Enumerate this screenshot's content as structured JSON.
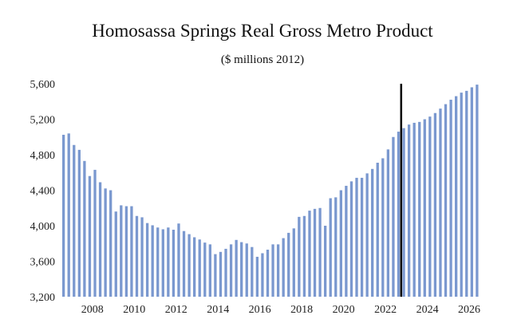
{
  "chart_data": {
    "type": "bar",
    "title": "Homosassa Springs Real Gross Metro Product",
    "subtitle": "($ millions 2012)",
    "xlabel": "",
    "ylabel": "",
    "ylim": [
      3200,
      5600
    ],
    "y_ticks": [
      3200,
      3600,
      4000,
      4400,
      4800,
      5200,
      5600
    ],
    "y_tick_labels": [
      "3,200",
      "3,600",
      "4,000",
      "4,400",
      "4,800",
      "5,200",
      "5,600"
    ],
    "x_tick_labels": [
      "2008",
      "2010",
      "2012",
      "2014",
      "2016",
      "2018",
      "2020",
      "2022",
      "2024",
      "2026"
    ],
    "x_start_year": 2007,
    "periods_per_year": 4,
    "forecast_line_after_index": 65,
    "bar_color": "#7a98cf",
    "values": [
      5025,
      5040,
      4910,
      4855,
      4730,
      4560,
      4630,
      4490,
      4420,
      4400,
      4160,
      4230,
      4220,
      4220,
      4110,
      4095,
      4030,
      4005,
      3980,
      3960,
      3980,
      3955,
      4025,
      3940,
      3905,
      3870,
      3845,
      3810,
      3790,
      3680,
      3705,
      3740,
      3790,
      3840,
      3815,
      3800,
      3760,
      3650,
      3690,
      3730,
      3790,
      3790,
      3860,
      3920,
      3970,
      4100,
      4110,
      4170,
      4190,
      4200,
      4000,
      4310,
      4320,
      4400,
      4450,
      4500,
      4540,
      4540,
      4590,
      4640,
      4710,
      4760,
      4860,
      5000,
      5060,
      5100,
      5140,
      5160,
      5170,
      5200,
      5230,
      5270,
      5320,
      5370,
      5420,
      5460,
      5500,
      5520,
      5560,
      5590
    ]
  }
}
